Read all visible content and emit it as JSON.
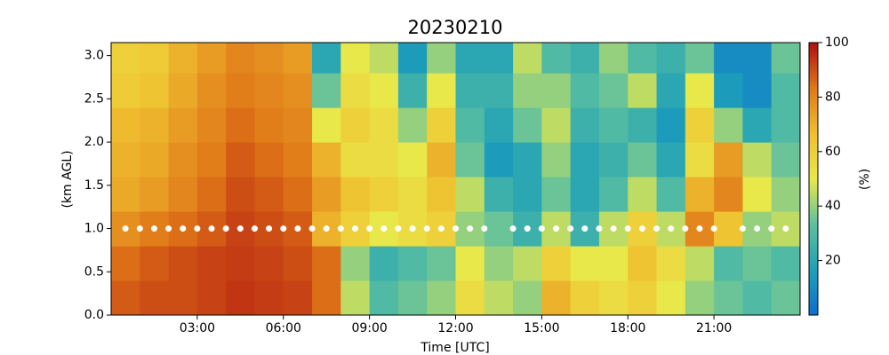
{
  "chart_data": {
    "type": "heatmap",
    "title": "20230210",
    "xlabel": "Time [UTC]",
    "ylabel": "(km AGL)",
    "colorbar_label": "(%)",
    "xlim": [
      0,
      24
    ],
    "ylim": [
      0,
      3.15
    ],
    "clim": [
      0,
      100
    ],
    "x_bins": [
      0,
      1,
      2,
      3,
      4,
      5,
      6,
      7,
      8,
      9,
      10,
      11,
      12,
      13,
      14,
      15,
      16,
      17,
      18,
      19,
      20,
      21,
      22,
      23,
      24
    ],
    "y_bins": [
      0,
      0.4,
      0.8,
      1.2,
      1.6,
      2.0,
      2.4,
      2.8,
      3.15
    ],
    "values": [
      [
        88,
        90,
        90,
        92,
        94,
        93,
        92,
        85,
        45,
        30,
        35,
        40,
        55,
        45,
        40,
        70,
        60,
        55,
        60,
        50,
        40,
        35,
        30,
        35
      ],
      [
        85,
        88,
        90,
        92,
        93,
        92,
        90,
        85,
        40,
        25,
        30,
        35,
        50,
        40,
        45,
        60,
        50,
        50,
        65,
        55,
        45,
        30,
        35,
        30
      ],
      [
        78,
        82,
        85,
        88,
        92,
        90,
        88,
        70,
        60,
        50,
        55,
        60,
        40,
        35,
        25,
        45,
        25,
        45,
        60,
        45,
        80,
        65,
        40,
        45
      ],
      [
        72,
        75,
        80,
        85,
        90,
        88,
        85,
        75,
        65,
        60,
        55,
        65,
        45,
        25,
        20,
        35,
        20,
        30,
        45,
        30,
        70,
        80,
        50,
        40
      ],
      [
        70,
        72,
        78,
        82,
        88,
        85,
        82,
        70,
        55,
        55,
        50,
        70,
        35,
        15,
        20,
        40,
        20,
        25,
        35,
        20,
        55,
        75,
        45,
        35
      ],
      [
        68,
        70,
        75,
        80,
        85,
        82,
        80,
        50,
        60,
        55,
        40,
        60,
        30,
        20,
        35,
        45,
        25,
        30,
        25,
        15,
        60,
        40,
        20,
        30
      ],
      [
        62,
        65,
        72,
        78,
        82,
        80,
        78,
        35,
        55,
        50,
        25,
        50,
        25,
        25,
        40,
        40,
        30,
        35,
        45,
        20,
        50,
        15,
        10,
        30
      ],
      [
        60,
        62,
        70,
        75,
        80,
        78,
        75,
        20,
        50,
        45,
        15,
        40,
        20,
        20,
        45,
        30,
        25,
        40,
        30,
        25,
        35,
        10,
        10,
        35
      ]
    ],
    "colormap": [
      "#0a6fd0",
      "#1fa0b8",
      "#5cc0a0",
      "#e8e84a",
      "#f0c030",
      "#e07818",
      "#b01010"
    ],
    "markers": {
      "color": "#ffffff",
      "x": [
        0.5,
        1,
        1.5,
        2,
        2.5,
        3,
        3.5,
        4,
        4.5,
        5,
        5.5,
        6,
        6.5,
        7,
        7.5,
        8,
        8.5,
        9,
        9.5,
        10,
        10.5,
        11,
        11.5,
        12,
        12.5,
        13,
        13.5,
        14,
        14.5,
        15,
        15.5,
        16,
        16.5,
        17,
        17.5,
        18,
        18.5,
        19,
        19.5,
        20,
        20.5,
        21,
        21.5,
        22,
        22.5,
        23,
        23.5
      ],
      "y": [
        1,
        1,
        1,
        1,
        1,
        1,
        1,
        1,
        1,
        1,
        1,
        1,
        1,
        1,
        1,
        1,
        1,
        1,
        1,
        1,
        1,
        1,
        1,
        1,
        1,
        1,
        null,
        1,
        1,
        1,
        1,
        1,
        1,
        1,
        1,
        1,
        1,
        1,
        1,
        1,
        1,
        1,
        null,
        1,
        1,
        1,
        1
      ]
    },
    "xticks": [
      {
        "value": 3,
        "label": "03:00"
      },
      {
        "value": 6,
        "label": "06:00"
      },
      {
        "value": 9,
        "label": "09:00"
      },
      {
        "value": 12,
        "label": "12:00"
      },
      {
        "value": 15,
        "label": "15:00"
      },
      {
        "value": 18,
        "label": "18:00"
      },
      {
        "value": 21,
        "label": "21:00"
      }
    ],
    "yticks": [
      {
        "value": 0,
        "label": "0.0"
      },
      {
        "value": 0.5,
        "label": "0.5"
      },
      {
        "value": 1,
        "label": "1.0"
      },
      {
        "value": 1.5,
        "label": "1.5"
      },
      {
        "value": 2,
        "label": "2.0"
      },
      {
        "value": 2.5,
        "label": "2.5"
      },
      {
        "value": 3,
        "label": "3.0"
      }
    ],
    "cticks": [
      20,
      40,
      60,
      80,
      100
    ]
  }
}
